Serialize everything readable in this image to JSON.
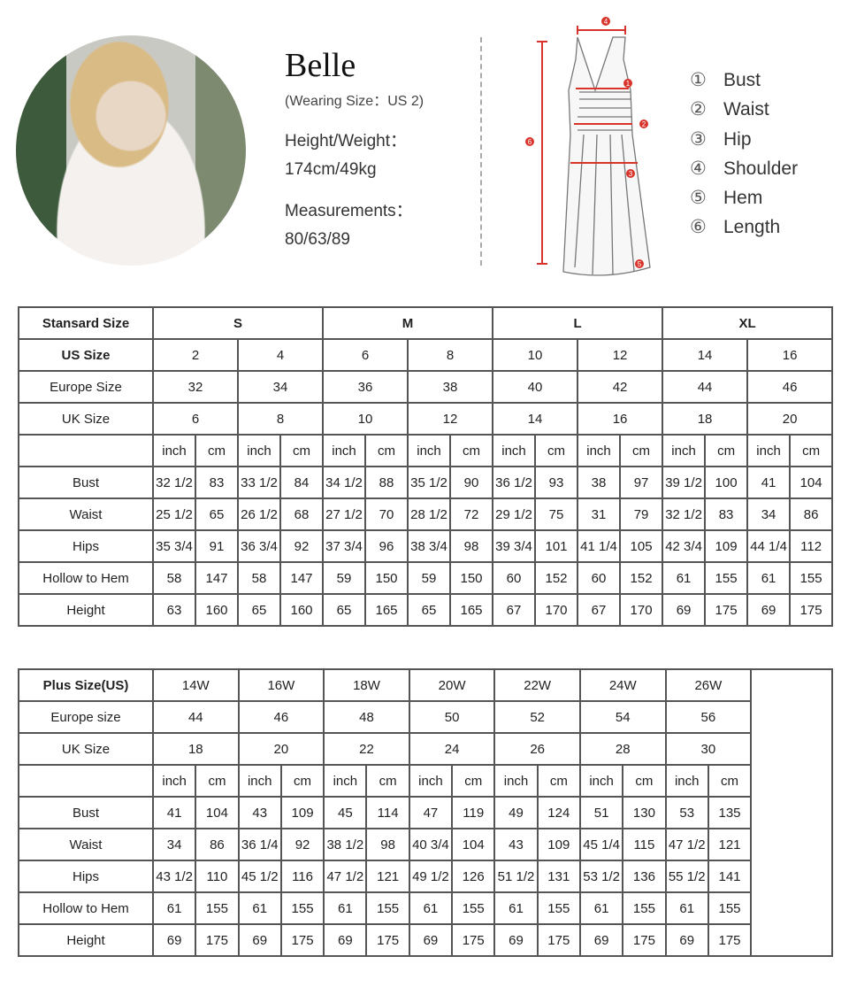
{
  "model": {
    "name": "Belle",
    "wearing_size": "(Wearing  Size：US 2)",
    "height_weight_label": "Height/Weight：",
    "height_weight": "174cm/49kg",
    "measurements_label": "Measurements：",
    "measurements": "80/63/89"
  },
  "diagram": {
    "markers": [
      "1",
      "2",
      "3",
      "4",
      "5",
      "6"
    ],
    "marker_color": "#d9342b"
  },
  "legend": [
    {
      "num": "①",
      "label": "Bust"
    },
    {
      "num": "②",
      "label": "Waist"
    },
    {
      "num": "③",
      "label": "Hip"
    },
    {
      "num": "④",
      "label": "Shoulder"
    },
    {
      "num": "⑤",
      "label": "Hem"
    },
    {
      "num": "⑥",
      "label": "Length"
    }
  ],
  "standard_table": {
    "header_label": "Stansard Size",
    "groups": [
      "S",
      "M",
      "L",
      "XL"
    ],
    "rows": [
      {
        "label": "US Size",
        "bold": true,
        "values": [
          "2",
          "4",
          "6",
          "8",
          "10",
          "12",
          "14",
          "16"
        ]
      },
      {
        "label": "Europe Size",
        "values": [
          "32",
          "34",
          "36",
          "38",
          "40",
          "42",
          "44",
          "46"
        ]
      },
      {
        "label": "UK Size",
        "values": [
          "6",
          "8",
          "10",
          "12",
          "14",
          "16",
          "18",
          "20"
        ]
      }
    ],
    "units": [
      "inch",
      "cm"
    ],
    "measures": [
      {
        "label": "Bust",
        "values": [
          "32 1/2",
          "83",
          "33 1/2",
          "84",
          "34 1/2",
          "88",
          "35 1/2",
          "90",
          "36 1/2",
          "93",
          "38",
          "97",
          "39 1/2",
          "100",
          "41",
          "104"
        ]
      },
      {
        "label": "Waist",
        "values": [
          "25 1/2",
          "65",
          "26 1/2",
          "68",
          "27 1/2",
          "70",
          "28 1/2",
          "72",
          "29 1/2",
          "75",
          "31",
          "79",
          "32 1/2",
          "83",
          "34",
          "86"
        ]
      },
      {
        "label": "Hips",
        "values": [
          "35 3/4",
          "91",
          "36 3/4",
          "92",
          "37 3/4",
          "96",
          "38 3/4",
          "98",
          "39 3/4",
          "101",
          "41 1/4",
          "105",
          "42 3/4",
          "109",
          "44 1/4",
          "112"
        ]
      },
      {
        "label": "Hollow to Hem",
        "values": [
          "58",
          "147",
          "58",
          "147",
          "59",
          "150",
          "59",
          "150",
          "60",
          "152",
          "60",
          "152",
          "61",
          "155",
          "61",
          "155"
        ]
      },
      {
        "label": "Height",
        "values": [
          "63",
          "160",
          "65",
          "160",
          "65",
          "165",
          "65",
          "165",
          "67",
          "170",
          "67",
          "170",
          "69",
          "175",
          "69",
          "175"
        ]
      }
    ]
  },
  "plus_table": {
    "header_label": "Plus Size(US)",
    "sizes": [
      "14W",
      "16W",
      "18W",
      "20W",
      "22W",
      "24W",
      "26W"
    ],
    "rows": [
      {
        "label": "Europe size",
        "values": [
          "44",
          "46",
          "48",
          "50",
          "52",
          "54",
          "56"
        ]
      },
      {
        "label": "UK Size",
        "values": [
          "18",
          "20",
          "22",
          "24",
          "26",
          "28",
          "30"
        ]
      }
    ],
    "units": [
      "inch",
      "cm"
    ],
    "measures": [
      {
        "label": "Bust",
        "values": [
          "41",
          "104",
          "43",
          "109",
          "45",
          "114",
          "47",
          "119",
          "49",
          "124",
          "51",
          "130",
          "53",
          "135"
        ]
      },
      {
        "label": "Waist",
        "values": [
          "34",
          "86",
          "36 1/4",
          "92",
          "38 1/2",
          "98",
          "40 3/4",
          "104",
          "43",
          "109",
          "45 1/4",
          "115",
          "47 1/2",
          "121"
        ]
      },
      {
        "label": "Hips",
        "values": [
          "43 1/2",
          "110",
          "45 1/2",
          "116",
          "47 1/2",
          "121",
          "49 1/2",
          "126",
          "51 1/2",
          "131",
          "53 1/2",
          "136",
          "55 1/2",
          "141"
        ]
      },
      {
        "label": "Hollow to Hem",
        "values": [
          "61",
          "155",
          "61",
          "155",
          "61",
          "155",
          "61",
          "155",
          "61",
          "155",
          "61",
          "155",
          "61",
          "155"
        ]
      },
      {
        "label": "Height",
        "values": [
          "69",
          "175",
          "69",
          "175",
          "69",
          "175",
          "69",
          "175",
          "69",
          "175",
          "69",
          "175",
          "69",
          "175"
        ]
      }
    ]
  }
}
